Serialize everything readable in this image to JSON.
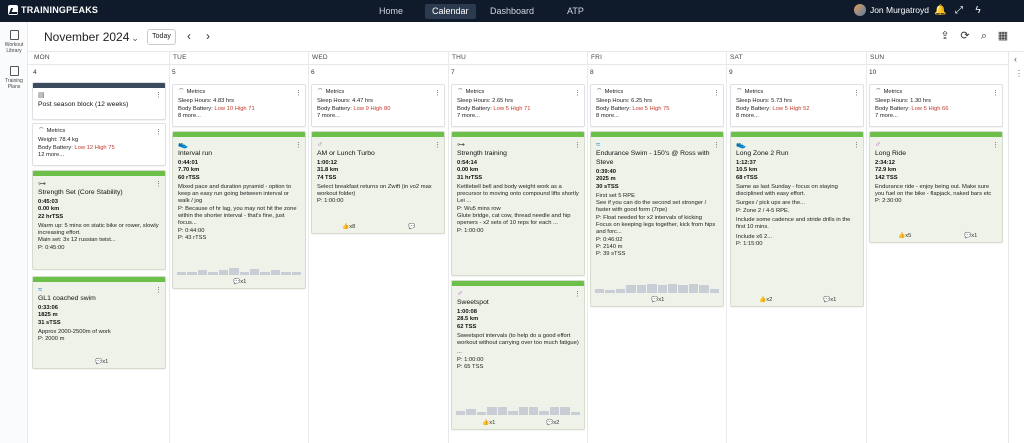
{
  "app": {
    "logo": "TRAININGPEAKS",
    "user_name": "Jon Murgatroyd"
  },
  "nav": [
    "Home",
    "Calendar",
    "Dashboard",
    "ATP"
  ],
  "left_rail": [
    {
      "label": "Workout Library"
    },
    {
      "label": "Training Plans"
    }
  ],
  "header": {
    "month": "November 2024",
    "today_label": "Today"
  },
  "days": [
    {
      "name": "MON",
      "num": "4"
    },
    {
      "name": "TUE",
      "num": "5"
    },
    {
      "name": "WED",
      "num": "6"
    },
    {
      "name": "THU",
      "num": "7"
    },
    {
      "name": "FRI",
      "num": "8"
    },
    {
      "name": "SAT",
      "num": "9"
    },
    {
      "name": "SUN",
      "num": "10"
    }
  ],
  "metrics_label": "Metrics",
  "more_label": "more...",
  "mon": {
    "block_title": "Post season block (12 weeks)",
    "metrics": {
      "weight": "Weight: 78.4 kg",
      "bb_prefix": "Body Battery: ",
      "bb_value": "Low 12 High 75",
      "more": "12 more..."
    },
    "strength": {
      "title": "Strength Set (Core Stability)",
      "duration": "0:45:03",
      "distance": "0.00 km",
      "tss": "22 hrTSS",
      "desc": "Warm up: 5 mins on static bike or rower, slowly increasing effort.",
      "desc2": "Main set: 3x 12 russian twist...",
      "planned": "P: 0:45:00"
    },
    "swim": {
      "title": "GL1 coached swim",
      "duration": "0:33:06",
      "distance": "1825 m",
      "tss": "31 sTSS",
      "desc": "Approx 2000-2500m of work",
      "planned": "P: 2000 m",
      "comments": "x1"
    }
  },
  "tue": {
    "metrics": {
      "sleep": "Sleep Hours: 4.83 hrs",
      "bb_prefix": "Body Battery: ",
      "bb_value": "Low 10 High 71",
      "more": "8 more..."
    },
    "run": {
      "title": "Interval run",
      "duration": "0:44:01",
      "distance": "7.70 km",
      "tss": "60 rTSS",
      "desc": "Mixed pace and duration pyramid - option to keep an easy run going between interval or walk / jog",
      "desc2": "P: Because of hr lag, you may not hit the zone within the shorter interval - that's fine, just focus...",
      "planned": "P: 0:44:00",
      "planned2": "P: 43 rTSS",
      "comments": "x1"
    }
  },
  "wed": {
    "metrics": {
      "sleep": "Sleep Hours: 4.47 hrs",
      "bb_prefix": "Body Battery: ",
      "bb_value": "Low 9 High 80",
      "more": "7 more..."
    },
    "bike": {
      "title": "AM or Lunch Turbo",
      "duration": "1:00:12",
      "distance": "31.8 km",
      "tss": "74 TSS",
      "desc": "Select breakfast returns on Zwift (in vo2 max workout folder)",
      "planned": "P: 1:00:00",
      "likes": "x8"
    }
  },
  "thu": {
    "metrics": {
      "sleep": "Sleep Hours: 2.65 hrs",
      "bb_prefix": "Body Battery: ",
      "bb_value": "Low 5 High 71",
      "more": "7 more..."
    },
    "strength": {
      "title": "Strength training",
      "duration": "0:54:14",
      "distance": "0.00 km",
      "tss": "31 hrTSS",
      "desc": "Kettlebell bell and body weight work as a precursor to moving onto compound lifts shortly",
      "desc2": "Lei ...",
      "desc3": "P: Wu5 mins row",
      "desc4": "Glute bridge, cat cow, thread needle and hip openers - x2 sets of 10 reps for each ...",
      "planned": "P: 1:00:00"
    },
    "bike": {
      "title": "Sweetspot",
      "duration": "1:00:08",
      "distance": "28.5 km",
      "tss": "62 TSS",
      "desc": "Sweetspot intervals (to help do a good effort workout without carrying over too much fatigue)",
      "desc2": "...",
      "planned": "P: 1:00:00",
      "planned2": "P: 65 TSS",
      "likes": "x1",
      "comments": "x2"
    }
  },
  "fri": {
    "metrics": {
      "sleep": "Sleep Hours: 6.25 hrs",
      "bb_prefix": "Body Battery: ",
      "bb_value": "Low 5 High 75",
      "more": "8 more..."
    },
    "swim": {
      "title": "Endurance Swim - 150's @ Ross with Steve",
      "duration": "0:39:40",
      "distance": "2025 m",
      "tss": "30 sTSS",
      "desc": "First set 5 RPE",
      "desc2": "See if you can do the second set stronger / faster with good form (7rpe)",
      "desc3": "P: Float needed for x2 intervals of kicking",
      "desc4": "Focus on keeping legs together, kick from hips and forc...",
      "planned": "P: 0:46:02",
      "planned2": "P: 2140 m",
      "planned3": "P: 39 sTSS",
      "comments": "x1"
    }
  },
  "sat": {
    "metrics": {
      "sleep": "Sleep Hours: 5.73 hrs",
      "bb_prefix": "Body Battery: ",
      "bb_value": "Low 5 High 52",
      "more": "8 more..."
    },
    "run": {
      "title": "Long Zone 2 Run",
      "duration": "1:12:37",
      "distance": "10.5 km",
      "tss": "68 rTSS",
      "desc": "Same as last Sunday - focus on staying disciplined with easy effort.",
      "desc2": "Surges / pick ups are the...",
      "desc3": "P: Zone 2 / 4-5 RPE.",
      "desc4": "Include some cadence and stride drills in the first 10 mins.",
      "desc5": "Include x6 2...",
      "planned": "P: 1:15:00",
      "likes": "x2",
      "comments": "x1"
    }
  },
  "sun": {
    "metrics": {
      "sleep": "Sleep Hours: 1.30 hrs",
      "bb_prefix": "Body Battery: ",
      "bb_value": "Low 5 High 66",
      "more": "7 more..."
    },
    "bike": {
      "title": "Long Ride",
      "duration": "2:34:12",
      "distance": "72.9 km",
      "tss": "142 TSS",
      "desc": "Endurance ride - enjoy being out. Make sure you fuel on the bike - flapjack, naked bars etc",
      "planned": "P: 2:30:00",
      "likes": "x5",
      "comments": "x1"
    }
  }
}
